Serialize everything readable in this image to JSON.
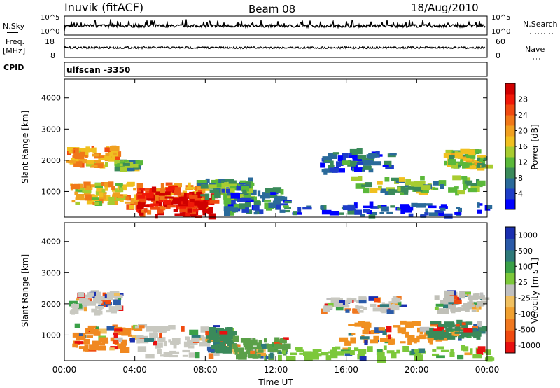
{
  "header": {
    "station": "Inuvik (fitACF)",
    "beam": "Beam 08",
    "date": "18/Aug/2010"
  },
  "status_panels": {
    "nsky_label": "N.Sky",
    "nsearch_label": "N.Search",
    "noise_ticks": [
      "10^5",
      "10^0"
    ],
    "freq_label": "Freq.",
    "freq_unit": "[MHz]",
    "freq_ticks": [
      "18",
      "8"
    ],
    "nave_label": "Nave",
    "nave_ticks": [
      "60",
      "0"
    ],
    "cpid_label": "CPID",
    "cpid_value": "ulfscan -3350"
  },
  "chart_data": [
    {
      "type": "heatmap",
      "name": "power",
      "ylabel": "Slant Range [km]",
      "ylim": [
        180,
        4600
      ],
      "yticks": [
        "1000",
        "2000",
        "3000",
        "4000"
      ],
      "xlim_hours": [
        0,
        24
      ],
      "colorbar": {
        "label": "Power [dB]",
        "ticks": [
          "4",
          "8",
          "12",
          "16",
          "20",
          "24",
          "28"
        ],
        "colors": [
          "#0000ff",
          "#1e3ec8",
          "#2a6a9a",
          "#3a8a5a",
          "#5ab83a",
          "#a8cc30",
          "#f0c020",
          "#f0a020",
          "#f07818",
          "#f04a10",
          "#f01808",
          "#d00000"
        ]
      },
      "echo_regions": [
        {
          "t": [
            0.1,
            2.8
          ],
          "r": [
            1800,
            2400
          ],
          "level": 0.65
        },
        {
          "t": [
            2.8,
            4.0
          ],
          "r": [
            1700,
            1950
          ],
          "level": 0.35
        },
        {
          "t": [
            0.3,
            3.2
          ],
          "r": [
            600,
            1250
          ],
          "level": 0.55
        },
        {
          "t": [
            3.2,
            8.0
          ],
          "r": [
            450,
            1300
          ],
          "level": 0.7
        },
        {
          "t": [
            4.0,
            6.5
          ],
          "r": [
            200,
            1100
          ],
          "level": 0.9
        },
        {
          "t": [
            6.5,
            8.3
          ],
          "r": [
            200,
            900
          ],
          "level": 0.95
        },
        {
          "t": [
            7.5,
            10.5
          ],
          "r": [
            800,
            1400
          ],
          "level": 0.3
        },
        {
          "t": [
            9.0,
            12.5
          ],
          "r": [
            300,
            1100
          ],
          "level": 0.2
        },
        {
          "t": [
            14.5,
            18.5
          ],
          "r": [
            1600,
            2300
          ],
          "level": 0.15
        },
        {
          "t": [
            16.0,
            23.5
          ],
          "r": [
            950,
            1450
          ],
          "level": 0.35
        },
        {
          "t": [
            21.5,
            23.8
          ],
          "r": [
            1750,
            2300
          ],
          "level": 0.45
        },
        {
          "t": [
            12.0,
            24.0
          ],
          "r": [
            200,
            600
          ],
          "level": 0.1
        }
      ]
    },
    {
      "type": "heatmap",
      "name": "velocity",
      "ylabel": "Slant Range [km]",
      "xlabel": "Time UT",
      "ylim": [
        180,
        4600
      ],
      "yticks": [
        "1000",
        "2000",
        "3000",
        "4000"
      ],
      "xticks": [
        "00:00",
        "04:00",
        "08:00",
        "12:00",
        "16:00",
        "20:00",
        "00:00"
      ],
      "colorbar": {
        "label": "Velocity [m s-1]",
        "ticks": [
          "1000",
          "500",
          "100",
          "25",
          "-25",
          "-100",
          "-500",
          "-1000"
        ],
        "colors": [
          "#1a2fb0",
          "#2a5aa8",
          "#2e7a7a",
          "#3aa048",
          "#7cc83a",
          "#c0c0c0",
          "#f0c060",
          "#f0a030",
          "#f07820",
          "#f04a10",
          "#e81010"
        ]
      },
      "echo_regions": [
        {
          "t": [
            0.2,
            3.0
          ],
          "r": [
            1700,
            2400
          ],
          "color": "#c8c8c0"
        },
        {
          "t": [
            0.3,
            4.0
          ],
          "r": [
            500,
            1300
          ],
          "color": "#f08820"
        },
        {
          "t": [
            4.0,
            8.5
          ],
          "r": [
            300,
            1300
          ],
          "color": "#c8c8c0"
        },
        {
          "t": [
            8.0,
            9.5
          ],
          "r": [
            500,
            1200
          ],
          "color": "#3a8a5a"
        },
        {
          "t": [
            9.5,
            12.5
          ],
          "r": [
            250,
            900
          ],
          "color": "#5aa048"
        },
        {
          "t": [
            14.5,
            19.0
          ],
          "r": [
            1750,
            2200
          ],
          "color": "#c8c8c0"
        },
        {
          "t": [
            15.5,
            21.5
          ],
          "r": [
            700,
            1400
          ],
          "color": "#f09020"
        },
        {
          "t": [
            20.5,
            23.5
          ],
          "r": [
            900,
            1400
          ],
          "color": "#3a8a5a"
        },
        {
          "t": [
            21.0,
            23.8
          ],
          "r": [
            1750,
            2350
          ],
          "color": "#c0c0b8"
        },
        {
          "t": [
            12.0,
            24.0
          ],
          "r": [
            200,
            600
          ],
          "color": "#7cc83a"
        }
      ]
    }
  ]
}
